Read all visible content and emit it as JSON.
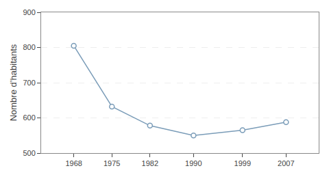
{
  "chart_data": {
    "type": "line",
    "ylabel": "Nombre d’habitants",
    "x": [
      1968,
      1975,
      1982,
      1990,
      1999,
      2007
    ],
    "values": [
      805,
      632,
      578,
      550,
      565,
      588
    ],
    "color": "#7a9cb8",
    "marker": "circle",
    "xlim": [
      1962,
      2013
    ],
    "xticks": [
      1968,
      1975,
      1982,
      1990,
      1999,
      2007
    ],
    "ylim": [
      500,
      900
    ],
    "yticks": [
      500,
      600,
      700,
      800,
      900
    ],
    "grid": "y"
  }
}
